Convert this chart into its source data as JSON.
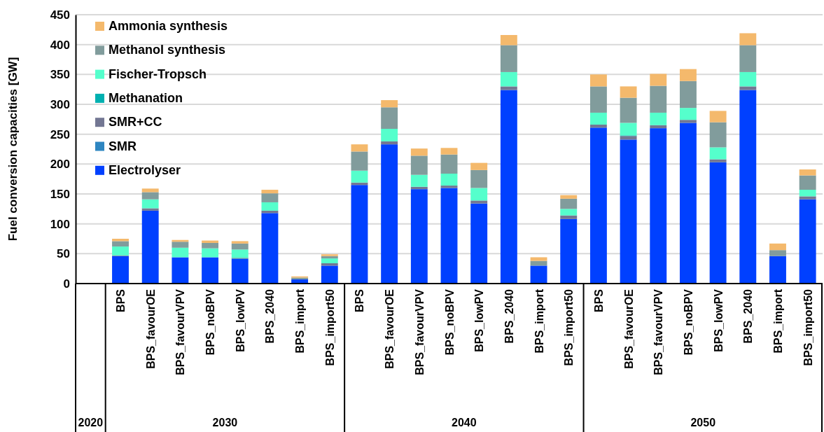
{
  "chart_data": {
    "type": "bar",
    "stacked": true,
    "ylabel": "Fuel conversion capacities [GW]",
    "categories": [
      null,
      "BPS",
      "BPS_favourOE",
      "BPS_favourVPV",
      "BPS_noBPV",
      "BPS_lowPV",
      "BPS_2040",
      "BPS_import",
      "BPS_import50",
      "BPS",
      "BPS_favourOE",
      "BPS_favourVPV",
      "BPS_noBPV",
      "BPS_lowPV",
      "BPS_2040",
      "BPS_import",
      "BPS_import50",
      "BPS",
      "BPS_favourOE",
      "BPS_favourVPV",
      "BPS_noBPV",
      "BPS_lowPV",
      "BPS_2040",
      "BPS_import",
      "BPS_import50"
    ],
    "annotations": [
      "2020",
      "2030",
      "2040",
      "2050"
    ],
    "ylim": [
      0,
      450
    ],
    "yticks": [
      0,
      50,
      100,
      150,
      200,
      250,
      300,
      350,
      400,
      450
    ],
    "grid": "y",
    "legend": "top left",
    "series": [
      {
        "name": "Electrolyser",
        "color": "#0040ff",
        "values": [
          null,
          46,
          122,
          44,
          44,
          41,
          118,
          7,
          30,
          165,
          233,
          158,
          160,
          134,
          324,
          30,
          108,
          261,
          241,
          260,
          269,
          203,
          324,
          46,
          141
        ]
      },
      {
        "name": "SMR",
        "color": "#2e86c1",
        "values": [
          null,
          0,
          0,
          0,
          0,
          1,
          0,
          0,
          0,
          0,
          0,
          0,
          0,
          0,
          0,
          0,
          0,
          0,
          0,
          0,
          0,
          0,
          0,
          0,
          0
        ]
      },
      {
        "name": "SMR+CC",
        "color": "#737793",
        "values": [
          null,
          1,
          4,
          null,
          null,
          1,
          4,
          null,
          4,
          4,
          5,
          4,
          4,
          5,
          6,
          0,
          6,
          5,
          6,
          5,
          5,
          5,
          6,
          0,
          5
        ]
      },
      {
        "name": "Methanation",
        "color": "#00b0b0",
        "values": [
          null,
          0,
          0,
          0,
          0,
          0,
          0,
          0,
          0,
          0,
          0,
          0,
          0,
          0,
          0,
          0,
          0,
          0,
          1,
          0,
          0,
          0,
          0,
          0,
          0
        ]
      },
      {
        "name": "Fischer-Tropsch",
        "color": "#55ffcc",
        "values": [
          null,
          15,
          15,
          16,
          15,
          14,
          14,
          0,
          8,
          20,
          21,
          20,
          20,
          21,
          24,
          0,
          11,
          20,
          21,
          21,
          20,
          20,
          24,
          0,
          11
        ]
      },
      {
        "name": "Methanol synthesis",
        "color": "#819c9c",
        "values": [
          null,
          9,
          12,
          10,
          9,
          10,
          15,
          3,
          4,
          32,
          36,
          32,
          32,
          30,
          45,
          8,
          17,
          44,
          42,
          45,
          45,
          42,
          45,
          10,
          24
        ]
      },
      {
        "name": "Ammonia synthesis",
        "color": "#f4b96c",
        "values": [
          null,
          4,
          6,
          3,
          4,
          4,
          6,
          2,
          3,
          12,
          12,
          12,
          11,
          12,
          17,
          6,
          6,
          20,
          19,
          20,
          20,
          19,
          20,
          11,
          10
        ]
      }
    ]
  }
}
